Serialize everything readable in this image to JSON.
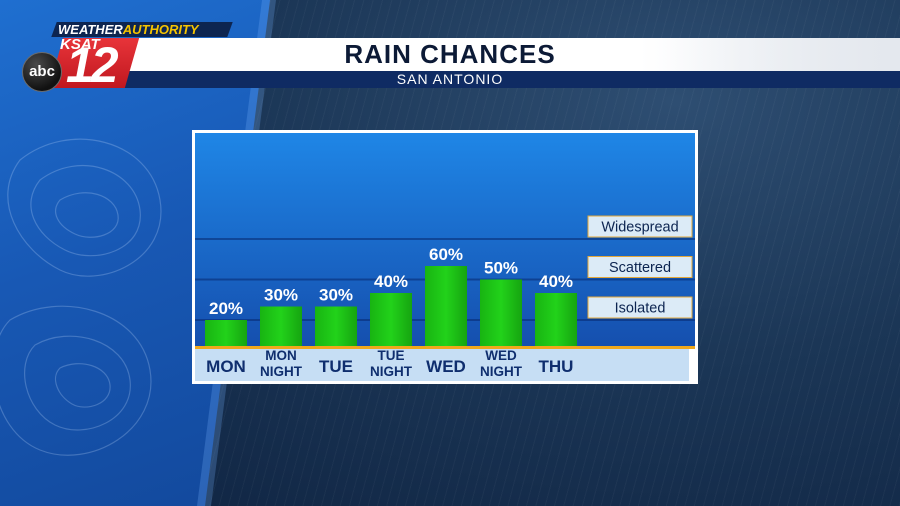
{
  "branding": {
    "tagline_part1": "WEATHER",
    "tagline_part2": "AUTHORITY",
    "station": "KSAT",
    "channel": "12",
    "network": "abc"
  },
  "header": {
    "title": "RAIN CHANCES",
    "subtitle": "SAN ANTONIO"
  },
  "colors": {
    "bar": "#22d21a",
    "panel_top": "#1f86e6",
    "panel_bottom": "#154fae",
    "axis_line": "#f0a81c",
    "label_strip": "#c6def4",
    "label_text": "#0f2e6e"
  },
  "chart_data": {
    "type": "bar",
    "categories": [
      "MON",
      "MON NIGHT",
      "TUE",
      "TUE NIGHT",
      "WED",
      "WED NIGHT",
      "THU"
    ],
    "values": [
      20,
      30,
      30,
      40,
      60,
      50,
      40
    ],
    "data_labels": [
      "20%",
      "30%",
      "30%",
      "40%",
      "60%",
      "50%",
      "40%"
    ],
    "ylim": [
      0,
      100
    ],
    "grid": false,
    "tiers": [
      {
        "label": "Isolated",
        "threshold": 20
      },
      {
        "label": "Scattered",
        "threshold": 50
      },
      {
        "label": "Widespread",
        "threshold": 80
      }
    ],
    "title": "RAIN CHANCES",
    "subtitle": "SAN ANTONIO"
  }
}
